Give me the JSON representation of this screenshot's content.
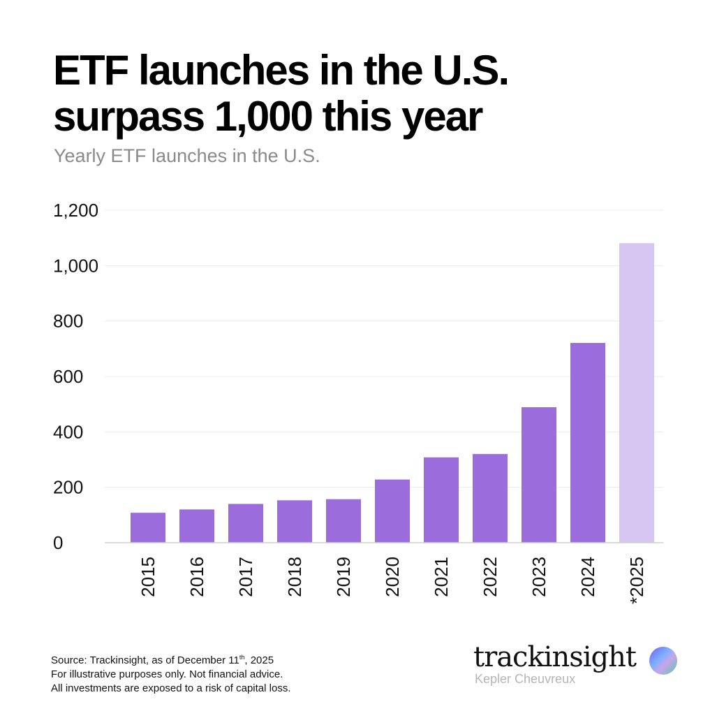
{
  "title_line1": "ETF launches in the U.S.",
  "title_line2": "surpass 1,000 this year",
  "subtitle": "Yearly ETF launches in the U.S.",
  "colors": {
    "bar": "#9b6cdb",
    "bar_estimate": "#d6c6f1",
    "grid": "#ececec",
    "axis": "#cfcfcf"
  },
  "chart_data": {
    "type": "bar",
    "title": "ETF launches in the U.S. surpass 1,000 this year",
    "subtitle": "Yearly ETF launches in the U.S.",
    "xlabel": "",
    "ylabel": "",
    "categories": [
      "2015",
      "2016",
      "2017",
      "2018",
      "2019",
      "2020",
      "2021",
      "2022",
      "2023",
      "2024",
      "*2025"
    ],
    "values": [
      108,
      120,
      140,
      153,
      157,
      228,
      308,
      320,
      489,
      721,
      1081
    ],
    "estimate_flags": [
      false,
      false,
      false,
      false,
      false,
      false,
      false,
      false,
      false,
      false,
      true
    ],
    "ylim": [
      0,
      1200
    ],
    "yticks": [
      0,
      200,
      400,
      600,
      800,
      1000,
      1200
    ],
    "ytick_labels": [
      "0",
      "200",
      "400",
      "600",
      "800",
      "1,000",
      "1,200"
    ],
    "grid": true,
    "legend": "none"
  },
  "footer": {
    "line1_prefix": "Source: Trackinsight, as of December 11",
    "line1_sup": "th",
    "line1_suffix": ", 2025",
    "line2": "For illustrative purposes only. Not financial advice.",
    "line3": "All investments are exposed to a risk of capital loss."
  },
  "logo": {
    "word": "trackinsight",
    "sub": "Kepler Cheuvreux"
  }
}
